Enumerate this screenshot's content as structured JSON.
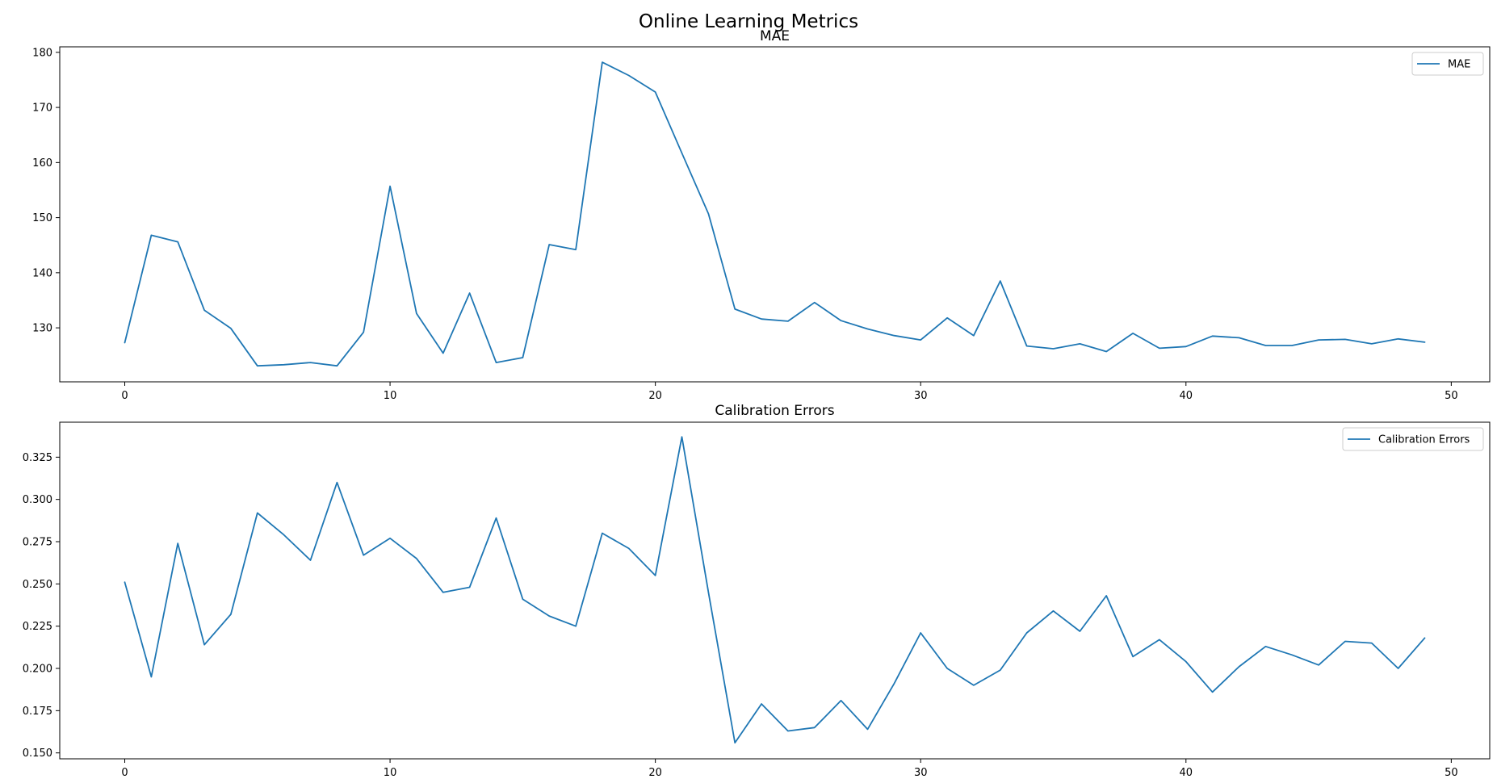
{
  "figure": {
    "suptitle": "Online Learning Metrics"
  },
  "colors": {
    "line": "#1f77b4",
    "axes": "#000000",
    "legend_border": "#cccccc",
    "background": "#ffffff"
  },
  "chart_data": [
    {
      "type": "line",
      "title": "MAE",
      "xlabel": "",
      "ylabel": "",
      "xlim": [
        -2.45,
        51.45
      ],
      "ylim": [
        120.2,
        181.0
      ],
      "xticks": [
        0,
        10,
        20,
        30,
        40,
        50
      ],
      "yticks": [
        130,
        140,
        150,
        160,
        170,
        180
      ],
      "ytick_labels": [
        "130",
        "140",
        "150",
        "160",
        "170",
        "180"
      ],
      "grid": false,
      "legend_position": "upper right",
      "series": [
        {
          "name": "MAE",
          "x": [
            0,
            1,
            2,
            3,
            4,
            5,
            6,
            7,
            8,
            9,
            10,
            11,
            12,
            13,
            14,
            15,
            16,
            17,
            18,
            19,
            20,
            21,
            22,
            23,
            24,
            25,
            26,
            27,
            28,
            29,
            30,
            31,
            32,
            33,
            34,
            35,
            36,
            37,
            38,
            39,
            40,
            41,
            42,
            43,
            44,
            45,
            46,
            47,
            48,
            49
          ],
          "values": [
            127.3,
            146.8,
            145.6,
            133.2,
            129.9,
            123.1,
            123.3,
            123.7,
            123.1,
            129.2,
            155.7,
            132.6,
            125.4,
            136.3,
            123.7,
            124.6,
            145.1,
            144.2,
            178.2,
            175.8,
            172.8,
            161.7,
            150.7,
            133.4,
            131.6,
            131.2,
            134.6,
            131.3,
            129.8,
            128.6,
            127.8,
            131.8,
            128.6,
            138.5,
            126.7,
            126.2,
            127.1,
            125.7,
            129.0,
            126.3,
            126.6,
            128.5,
            128.2,
            126.8,
            126.8,
            127.8,
            127.9,
            127.1,
            128.0,
            127.4
          ]
        }
      ]
    },
    {
      "type": "line",
      "title": "Calibration Errors",
      "xlabel": "",
      "ylabel": "",
      "xlim": [
        -2.45,
        51.45
      ],
      "ylim": [
        0.1465,
        0.3457
      ],
      "xticks": [
        0,
        10,
        20,
        30,
        40,
        50
      ],
      "yticks": [
        0.15,
        0.175,
        0.2,
        0.225,
        0.25,
        0.275,
        0.3,
        0.325
      ],
      "ytick_labels": [
        "0.150",
        "0.175",
        "0.200",
        "0.225",
        "0.250",
        "0.275",
        "0.300",
        "0.325"
      ],
      "grid": false,
      "legend_position": "upper right",
      "series": [
        {
          "name": "Calibration Errors",
          "x": [
            0,
            1,
            2,
            3,
            4,
            5,
            6,
            7,
            8,
            9,
            10,
            11,
            12,
            13,
            14,
            15,
            16,
            17,
            18,
            19,
            20,
            21,
            22,
            23,
            24,
            25,
            26,
            27,
            28,
            29,
            30,
            31,
            32,
            33,
            34,
            35,
            36,
            37,
            38,
            39,
            40,
            41,
            42,
            43,
            44,
            45,
            46,
            47,
            48,
            49
          ],
          "values": [
            0.251,
            0.195,
            0.274,
            0.214,
            0.232,
            0.292,
            0.279,
            0.264,
            0.31,
            0.267,
            0.277,
            0.265,
            0.245,
            0.248,
            0.289,
            0.241,
            0.231,
            0.225,
            0.28,
            0.271,
            0.255,
            0.337,
            0.245,
            0.156,
            0.179,
            0.163,
            0.165,
            0.181,
            0.164,
            0.191,
            0.221,
            0.2,
            0.19,
            0.199,
            0.221,
            0.234,
            0.222,
            0.243,
            0.207,
            0.217,
            0.204,
            0.186,
            0.201,
            0.213,
            0.208,
            0.202,
            0.216,
            0.215,
            0.2,
            0.218
          ]
        }
      ]
    }
  ]
}
